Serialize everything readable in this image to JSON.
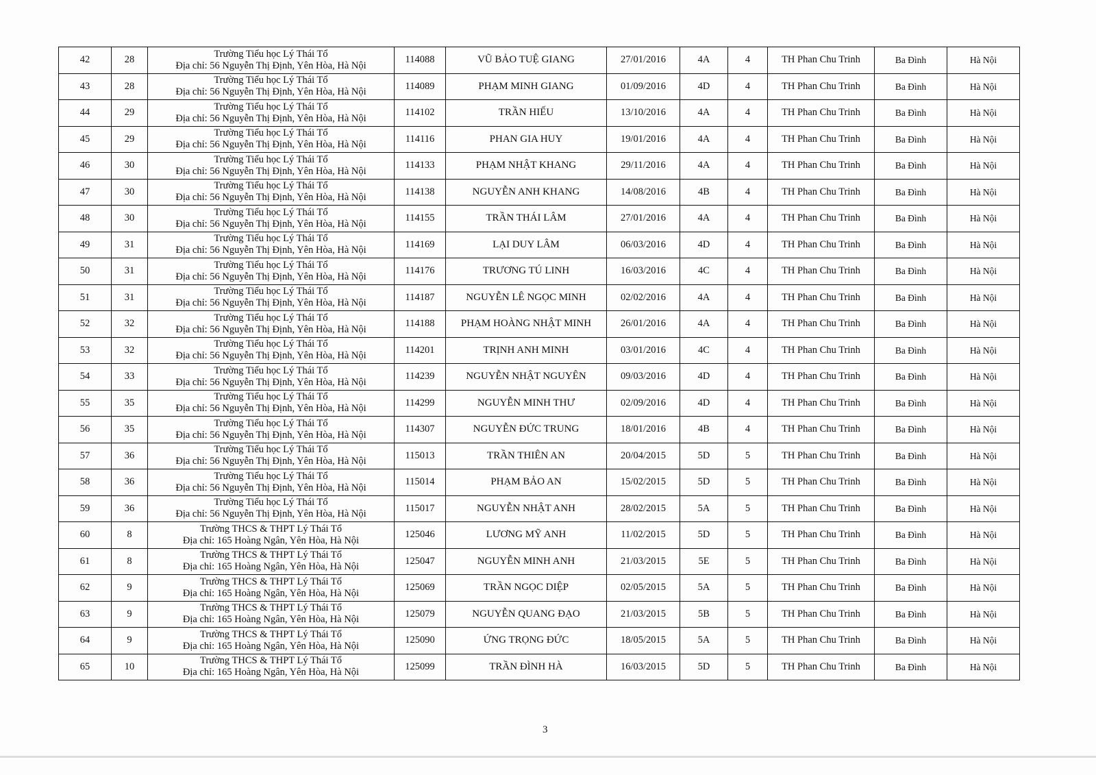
{
  "page_number": "3",
  "rows": [
    {
      "stt": "42",
      "room": "28",
      "school": "Trường Tiểu học Lý Thái Tổ",
      "address": "Địa chỉ: 56 Nguyễn Thị Định, Yên Hòa, Hà Nội",
      "sbd": "114088",
      "name": "VŨ BẢO TUỆ GIANG",
      "dob": "27/01/2016",
      "class": "4A",
      "grade": "4",
      "origin_school": "TH Phan Chu Trinh",
      "district": "Ba Đình",
      "city": "Hà Nội"
    },
    {
      "stt": "43",
      "room": "28",
      "school": "Trường Tiểu học Lý Thái Tổ",
      "address": "Địa chỉ: 56 Nguyễn Thị Định, Yên Hòa, Hà Nội",
      "sbd": "114089",
      "name": "PHẠM MINH GIANG",
      "dob": "01/09/2016",
      "class": "4D",
      "grade": "4",
      "origin_school": "TH Phan Chu Trinh",
      "district": "Ba Đình",
      "city": "Hà Nội"
    },
    {
      "stt": "44",
      "room": "29",
      "school": "Trường Tiểu học Lý Thái Tổ",
      "address": "Địa chỉ: 56 Nguyễn Thị Định, Yên Hòa, Hà Nội",
      "sbd": "114102",
      "name": "TRẦN HIẾU",
      "dob": "13/10/2016",
      "class": "4A",
      "grade": "4",
      "origin_school": "TH Phan Chu Trinh",
      "district": "Ba Đình",
      "city": "Hà Nội"
    },
    {
      "stt": "45",
      "room": "29",
      "school": "Trường Tiểu học Lý Thái Tổ",
      "address": "Địa chỉ: 56 Nguyễn Thị Định, Yên Hòa, Hà Nội",
      "sbd": "114116",
      "name": "PHAN GIA HUY",
      "dob": "19/01/2016",
      "class": "4A",
      "grade": "4",
      "origin_school": "TH Phan Chu Trinh",
      "district": "Ba Đình",
      "city": "Hà Nội"
    },
    {
      "stt": "46",
      "room": "30",
      "school": "Trường Tiểu học Lý Thái Tổ",
      "address": "Địa chỉ: 56 Nguyễn Thị Định, Yên Hòa, Hà Nội",
      "sbd": "114133",
      "name": "PHẠM NHẬT KHANG",
      "dob": "29/11/2016",
      "class": "4A",
      "grade": "4",
      "origin_school": "TH Phan Chu Trinh",
      "district": "Ba Đình",
      "city": "Hà Nội"
    },
    {
      "stt": "47",
      "room": "30",
      "school": "Trường Tiểu học Lý Thái Tổ",
      "address": "Địa chỉ: 56 Nguyễn Thị Định, Yên Hòa, Hà Nội",
      "sbd": "114138",
      "name": "NGUYỄN ANH KHANG",
      "dob": "14/08/2016",
      "class": "4B",
      "grade": "4",
      "origin_school": "TH Phan Chu Trinh",
      "district": "Ba Đình",
      "city": "Hà Nội"
    },
    {
      "stt": "48",
      "room": "30",
      "school": "Trường Tiểu học Lý Thái Tổ",
      "address": "Địa chỉ: 56 Nguyễn Thị Định, Yên Hòa, Hà Nội",
      "sbd": "114155",
      "name": "TRẦN THÁI LÂM",
      "dob": "27/01/2016",
      "class": "4A",
      "grade": "4",
      "origin_school": "TH Phan Chu Trinh",
      "district": "Ba Đình",
      "city": "Hà Nội"
    },
    {
      "stt": "49",
      "room": "31",
      "school": "Trường Tiểu học Lý Thái Tổ",
      "address": "Địa chỉ: 56 Nguyễn Thị Định, Yên Hòa, Hà Nội",
      "sbd": "114169",
      "name": "LẠI DUY LÂM",
      "dob": "06/03/2016",
      "class": "4D",
      "grade": "4",
      "origin_school": "TH Phan Chu Trinh",
      "district": "Ba Đình",
      "city": "Hà Nội"
    },
    {
      "stt": "50",
      "room": "31",
      "school": "Trường Tiểu học Lý Thái Tổ",
      "address": "Địa chỉ: 56 Nguyễn Thị Định, Yên Hòa, Hà Nội",
      "sbd": "114176",
      "name": "TRƯƠNG TÚ LINH",
      "dob": "16/03/2016",
      "class": "4C",
      "grade": "4",
      "origin_school": "TH Phan Chu Trinh",
      "district": "Ba Đình",
      "city": "Hà Nội"
    },
    {
      "stt": "51",
      "room": "31",
      "school": "Trường Tiểu học Lý Thái Tổ",
      "address": "Địa chỉ: 56 Nguyễn Thị Định, Yên Hòa, Hà Nội",
      "sbd": "114187",
      "name": "NGUYỄN LÊ NGỌC MINH",
      "dob": "02/02/2016",
      "class": "4A",
      "grade": "4",
      "origin_school": "TH Phan Chu Trinh",
      "district": "Ba Đình",
      "city": "Hà Nội"
    },
    {
      "stt": "52",
      "room": "32",
      "school": "Trường Tiểu học Lý Thái Tổ",
      "address": "Địa chỉ: 56 Nguyễn Thị Định, Yên Hòa, Hà Nội",
      "sbd": "114188",
      "name": "PHẠM HOÀNG NHẬT MINH",
      "dob": "26/01/2016",
      "class": "4A",
      "grade": "4",
      "origin_school": "TH Phan Chu Trinh",
      "district": "Ba Đình",
      "city": "Hà Nội"
    },
    {
      "stt": "53",
      "room": "32",
      "school": "Trường Tiểu học Lý Thái Tổ",
      "address": "Địa chỉ: 56 Nguyễn Thị Định, Yên Hòa, Hà Nội",
      "sbd": "114201",
      "name": "TRỊNH ANH MINH",
      "dob": "03/01/2016",
      "class": "4C",
      "grade": "4",
      "origin_school": "TH Phan Chu Trinh",
      "district": "Ba Đình",
      "city": "Hà Nội"
    },
    {
      "stt": "54",
      "room": "33",
      "school": "Trường Tiểu học Lý Thái Tổ",
      "address": "Địa chỉ: 56 Nguyễn Thị Định, Yên Hòa, Hà Nội",
      "sbd": "114239",
      "name": "NGUYỄN NHẬT NGUYÊN",
      "dob": "09/03/2016",
      "class": "4D",
      "grade": "4",
      "origin_school": "TH Phan Chu Trinh",
      "district": "Ba Đình",
      "city": "Hà Nội"
    },
    {
      "stt": "55",
      "room": "35",
      "school": "Trường Tiểu học Lý Thái Tổ",
      "address": "Địa chỉ: 56 Nguyễn Thị Định, Yên Hòa, Hà Nội",
      "sbd": "114299",
      "name": "NGUYỄN MINH THƯ",
      "dob": "02/09/2016",
      "class": "4D",
      "grade": "4",
      "origin_school": "TH Phan Chu Trinh",
      "district": "Ba Đình",
      "city": "Hà Nội"
    },
    {
      "stt": "56",
      "room": "35",
      "school": "Trường Tiểu học Lý Thái Tổ",
      "address": "Địa chỉ: 56 Nguyễn Thị Định, Yên Hòa, Hà Nội",
      "sbd": "114307",
      "name": "NGUYỄN ĐỨC TRUNG",
      "dob": "18/01/2016",
      "class": "4B",
      "grade": "4",
      "origin_school": "TH Phan Chu Trinh",
      "district": "Ba Đình",
      "city": "Hà Nội"
    },
    {
      "stt": "57",
      "room": "36",
      "school": "Trường Tiểu học Lý Thái Tổ",
      "address": "Địa chỉ: 56 Nguyễn Thị Định, Yên Hòa, Hà Nội",
      "sbd": "115013",
      "name": "TRẦN THIÊN AN",
      "dob": "20/04/2015",
      "class": "5D",
      "grade": "5",
      "origin_school": "TH Phan Chu Trinh",
      "district": "Ba Đình",
      "city": "Hà Nội"
    },
    {
      "stt": "58",
      "room": "36",
      "school": "Trường Tiểu học Lý Thái Tổ",
      "address": "Địa chỉ: 56 Nguyễn Thị Định, Yên Hòa, Hà Nội",
      "sbd": "115014",
      "name": "PHẠM BẢO AN",
      "dob": "15/02/2015",
      "class": "5D",
      "grade": "5",
      "origin_school": "TH Phan Chu Trinh",
      "district": "Ba Đình",
      "city": "Hà Nội"
    },
    {
      "stt": "59",
      "room": "36",
      "school": "Trường Tiểu học Lý Thái Tổ",
      "address": "Địa chỉ: 56 Nguyễn Thị Định, Yên Hòa, Hà Nội",
      "sbd": "115017",
      "name": "NGUYỄN NHẬT ANH",
      "dob": "28/02/2015",
      "class": "5A",
      "grade": "5",
      "origin_school": "TH Phan Chu Trinh",
      "district": "Ba Đình",
      "city": "Hà Nội"
    },
    {
      "stt": "60",
      "room": "8",
      "school": "Trường THCS & THPT Lý Thái Tổ",
      "address": "Địa chỉ: 165 Hoàng Ngân, Yên Hòa, Hà Nội",
      "sbd": "125046",
      "name": "LƯƠNG MỸ ANH",
      "dob": "11/02/2015",
      "class": "5D",
      "grade": "5",
      "origin_school": "TH Phan Chu Trinh",
      "district": "Ba Đình",
      "city": "Hà Nội"
    },
    {
      "stt": "61",
      "room": "8",
      "school": "Trường THCS & THPT Lý Thái Tổ",
      "address": "Địa chỉ: 165 Hoàng Ngân, Yên Hòa, Hà Nội",
      "sbd": "125047",
      "name": "NGUYỄN MINH ANH",
      "dob": "21/03/2015",
      "class": "5E",
      "grade": "5",
      "origin_school": "TH Phan Chu Trinh",
      "district": "Ba Đình",
      "city": "Hà Nội"
    },
    {
      "stt": "62",
      "room": "9",
      "school": "Trường THCS & THPT Lý Thái Tổ",
      "address": "Địa chỉ: 165 Hoàng Ngân, Yên Hòa, Hà Nội",
      "sbd": "125069",
      "name": "TRẦN NGỌC DIỆP",
      "dob": "02/05/2015",
      "class": "5A",
      "grade": "5",
      "origin_school": "TH Phan Chu Trinh",
      "district": "Ba Đình",
      "city": "Hà Nội"
    },
    {
      "stt": "63",
      "room": "9",
      "school": "Trường THCS & THPT Lý Thái Tổ",
      "address": "Địa chỉ: 165 Hoàng Ngân, Yên Hòa, Hà Nội",
      "sbd": "125079",
      "name": "NGUYỄN QUANG ĐẠO",
      "dob": "21/03/2015",
      "class": "5B",
      "grade": "5",
      "origin_school": "TH Phan Chu Trinh",
      "district": "Ba Đình",
      "city": "Hà Nội"
    },
    {
      "stt": "64",
      "room": "9",
      "school": "Trường THCS & THPT Lý Thái Tổ",
      "address": "Địa chỉ: 165 Hoàng Ngân, Yên Hòa, Hà Nội",
      "sbd": "125090",
      "name": "ỨNG TRỌNG ĐỨC",
      "dob": "18/05/2015",
      "class": "5A",
      "grade": "5",
      "origin_school": "TH Phan Chu Trinh",
      "district": "Ba Đình",
      "city": "Hà Nội"
    },
    {
      "stt": "65",
      "room": "10",
      "school": "Trường THCS & THPT Lý Thái Tổ",
      "address": "Địa chỉ: 165 Hoàng Ngân, Yên Hòa, Hà Nội",
      "sbd": "125099",
      "name": "TRẦN ĐÌNH HÀ",
      "dob": "16/03/2015",
      "class": "5D",
      "grade": "5",
      "origin_school": "TH Phan Chu Trinh",
      "district": "Ba Đình",
      "city": "Hà Nội"
    }
  ]
}
